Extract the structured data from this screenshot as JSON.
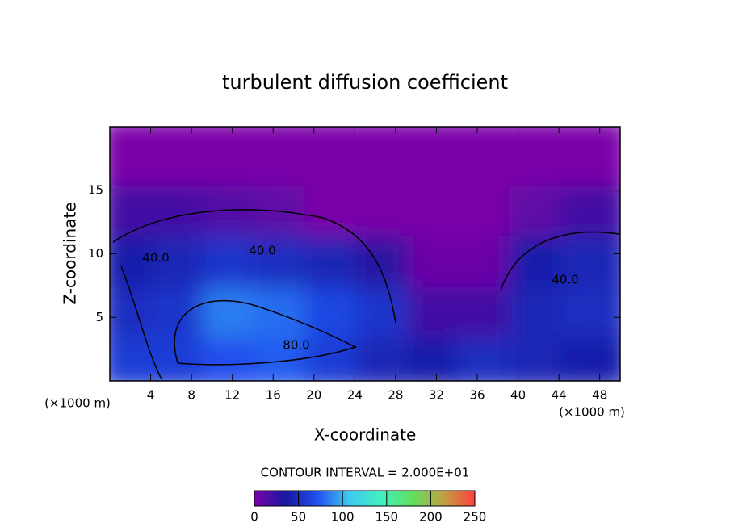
{
  "chart_data": {
    "type": "heatmap",
    "title": "turbulent diffusion coefficient",
    "xlabel": "X-coordinate",
    "ylabel": "Z-coordinate",
    "x_unit": "(×1000 m)",
    "y_unit": "(×1000 m)",
    "xlim": [
      0,
      50
    ],
    "xticks": [
      4,
      8,
      12,
      16,
      20,
      24,
      28,
      32,
      36,
      40,
      44,
      48
    ],
    "ylim": [
      0,
      20
    ],
    "yticks": [
      5,
      10,
      15
    ],
    "x": [
      2.5,
      7.5,
      12.5,
      17.5,
      22.5,
      27.5,
      32.5,
      37.5,
      42.5,
      47.5
    ],
    "z": [
      2,
      6,
      10,
      14,
      18
    ],
    "values": [
      [
        60,
        60,
        70,
        75,
        60,
        45,
        40,
        50,
        45,
        40
      ],
      [
        50,
        55,
        85,
        80,
        65,
        55,
        20,
        20,
        45,
        50
      ],
      [
        40,
        45,
        55,
        50,
        45,
        30,
        5,
        5,
        40,
        45
      ],
      [
        20,
        20,
        15,
        10,
        0,
        0,
        0,
        0,
        10,
        20
      ],
      [
        0,
        0,
        0,
        0,
        0,
        0,
        0,
        0,
        0,
        0
      ]
    ],
    "contour_labels": [
      "40.0",
      "40.0",
      "40.0",
      "80.0"
    ],
    "contour_note": "CONTOUR INTERVAL = 2.000E+01",
    "clim": [
      0,
      250
    ],
    "cticks": [
      0,
      50,
      100,
      150,
      200,
      250
    ],
    "colors": [
      "#7a00a8",
      "#1818a0",
      "#2050f0",
      "#40c8f0",
      "#40f0c0",
      "#60e060",
      "#c0a040",
      "#ff4040"
    ]
  }
}
